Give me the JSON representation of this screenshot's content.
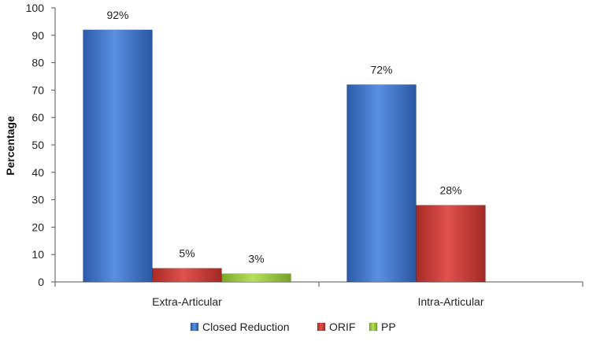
{
  "chart_data": {
    "type": "bar",
    "categories": [
      "Extra-Articular",
      "Intra-Articular"
    ],
    "series": [
      {
        "name": "Closed Reduction",
        "values": [
          92,
          72
        ],
        "labels": [
          "92%",
          "72%"
        ],
        "color": "#3f73c8"
      },
      {
        "name": "ORIF",
        "values": [
          5,
          28
        ],
        "labels": [
          "5%",
          "28%"
        ],
        "color": "#cc3b37"
      },
      {
        "name": "PP",
        "values": [
          3,
          null
        ],
        "labels": [
          "3%",
          ""
        ],
        "color": "#9acb3c"
      }
    ],
    "ylabel": "Percentage",
    "ylim": [
      0,
      100
    ],
    "yticks": [
      "0",
      "10",
      "20",
      "30",
      "40",
      "50",
      "60",
      "70",
      "80",
      "90",
      "100"
    ],
    "grid": false,
    "legend_position": "bottom"
  }
}
